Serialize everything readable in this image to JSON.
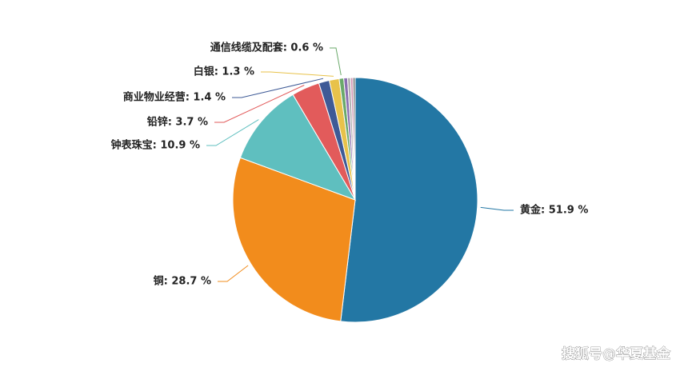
{
  "chart_data": {
    "type": "pie",
    "value_labels": [
      "黄金: 51.9 %",
      "铜: 28.7 %",
      "钟表珠宝: 10.9 %",
      "铅锌: 3.7 %",
      "商业物业经营: 1.4 %",
      "白银: 1.3 %",
      "通信线缆及配套: 0.6 %",
      null,
      null,
      null,
      null
    ],
    "values": [
      51.9,
      28.7,
      10.9,
      3.7,
      1.4,
      1.3,
      0.6,
      0.5,
      0.4,
      0.3,
      0.3
    ],
    "colors": [
      "#2377a4",
      "#f28c1c",
      "#5fbfbf",
      "#e25b5b",
      "#3e5a96",
      "#e8c24a",
      "#6aa96a",
      "#8a6fb0",
      "#b0b0b0",
      "#d08fb0",
      "#7f7f7f"
    ]
  },
  "watermark": "搜狐号@华夏基金"
}
